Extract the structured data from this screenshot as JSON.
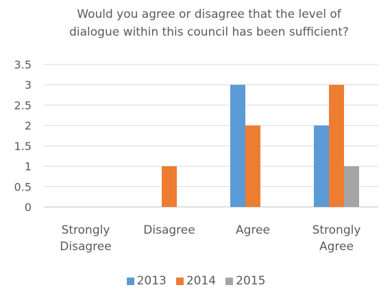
{
  "chart_data": {
    "type": "bar",
    "title_lines": [
      "Would you agree or disagree that the level of",
      "dialogue within this council has been sufficient?"
    ],
    "categories": [
      [
        "Strongly",
        "Disagree"
      ],
      [
        "Disagree"
      ],
      [
        "Agree"
      ],
      [
        "Strongly",
        "Agree"
      ]
    ],
    "series": [
      {
        "name": "2013",
        "color": "#5b9bd5",
        "values": [
          0,
          0,
          3,
          2
        ]
      },
      {
        "name": "2014",
        "color": "#ed7d31",
        "values": [
          0,
          1,
          2,
          3
        ]
      },
      {
        "name": "2015",
        "color": "#a5a5a5",
        "values": [
          0,
          0,
          0,
          1
        ]
      }
    ],
    "ylim": [
      0,
      3.5
    ],
    "y_ticks": [
      "0",
      "0.5",
      "1",
      "1.5",
      "2",
      "2.5",
      "3",
      "3.5"
    ],
    "grid": true,
    "legend_position": "bottom"
  }
}
